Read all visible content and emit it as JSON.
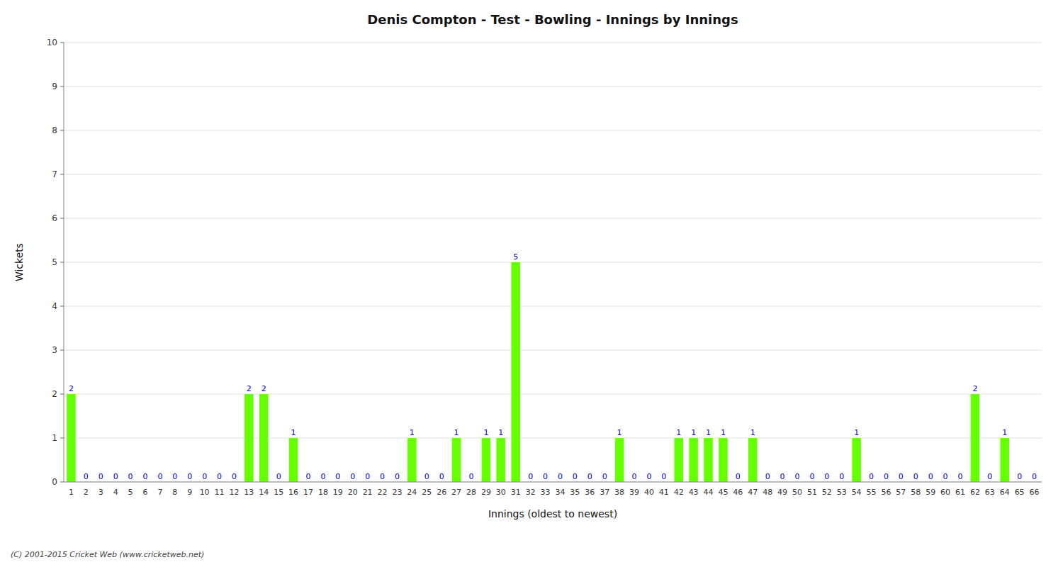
{
  "chart_data": {
    "type": "bar",
    "title": "Denis Compton - Test - Bowling - Innings by Innings",
    "x_label": "Innings (oldest to newest)",
    "y_label": "Wickets",
    "annotations": [
      "(C) 2001-2015 Cricket Web (www.cricketweb.net)"
    ],
    "categories": [
      "1",
      "2",
      "3",
      "4",
      "5",
      "6",
      "7",
      "8",
      "9",
      "10",
      "11",
      "12",
      "13",
      "14",
      "15",
      "16",
      "17",
      "18",
      "19",
      "20",
      "21",
      "22",
      "23",
      "24",
      "25",
      "26",
      "27",
      "28",
      "29",
      "30",
      "31",
      "32",
      "33",
      "34",
      "35",
      "36",
      "37",
      "38",
      "39",
      "40",
      "41",
      "42",
      "43",
      "44",
      "45",
      "46",
      "47",
      "48",
      "49",
      "50",
      "51",
      "52",
      "53",
      "54",
      "55",
      "56",
      "57",
      "58",
      "59",
      "60",
      "61",
      "62",
      "63",
      "64",
      "65",
      "66"
    ],
    "values": [
      2,
      0,
      0,
      0,
      0,
      0,
      0,
      0,
      0,
      0,
      0,
      0,
      2,
      2,
      0,
      1,
      0,
      0,
      0,
      0,
      0,
      0,
      0,
      1,
      0,
      0,
      1,
      0,
      1,
      1,
      5,
      0,
      0,
      0,
      0,
      0,
      0,
      1,
      0,
      0,
      0,
      1,
      1,
      1,
      1,
      0,
      1,
      0,
      0,
      0,
      0,
      0,
      0,
      1,
      0,
      0,
      0,
      0,
      0,
      0,
      0,
      2,
      0,
      1,
      0,
      0
    ],
    "color": "#66ff00",
    "ylim": [
      0,
      10
    ],
    "yticks": [
      0,
      1,
      2,
      3,
      4,
      5,
      6,
      7,
      8,
      9,
      10
    ],
    "grid": true,
    "data_labels": true
  }
}
